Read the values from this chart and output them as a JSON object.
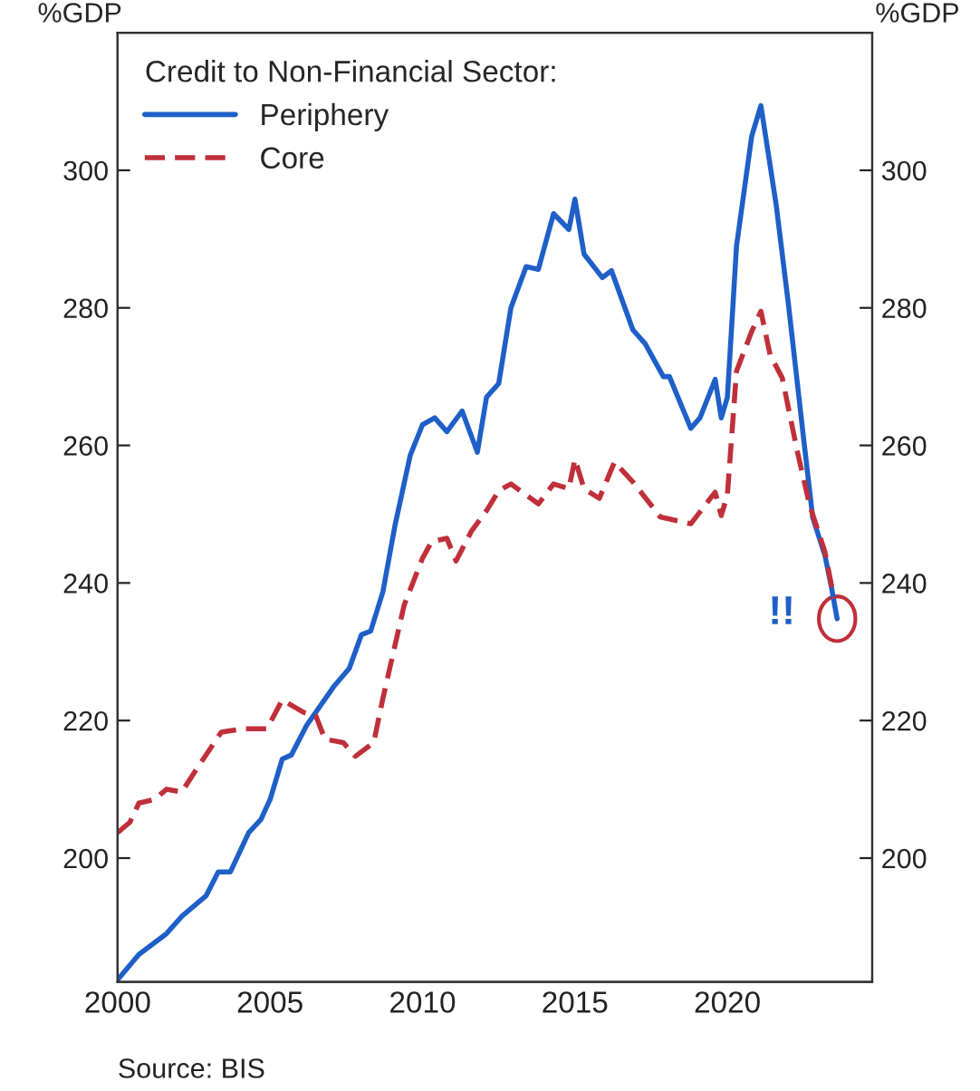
{
  "chart_data": {
    "type": "line",
    "legend_title": "Credit to Non-Financial Sector:",
    "ylabel": "%GDP",
    "y2label": "%GDP",
    "xlim": [
      2000,
      2024.75
    ],
    "xticks": [
      2000,
      2005,
      2010,
      2015,
      2020
    ],
    "ylim": [
      182,
      320
    ],
    "yticks": [
      200,
      220,
      240,
      260,
      280,
      300
    ],
    "y2lim": [
      182,
      320
    ],
    "y2ticks": [
      200,
      220,
      240,
      260,
      280,
      300
    ],
    "legend": "top left",
    "grid": false,
    "series": [
      {
        "name": "Periphery",
        "color": "#1f5fc8",
        "line_style": "solid",
        "x": [
          2000,
          2000.7,
          2001.6,
          2002.1,
          2002.9,
          2003.3,
          2003.7,
          2004.3,
          2004.7,
          2005,
          2005.4,
          2005.7,
          2006.2,
          2007.1,
          2007.6,
          2008,
          2008.3,
          2008.7,
          2009.1,
          2009.6,
          2010,
          2010.4,
          2010.8,
          2011.3,
          2011.8,
          2012.1,
          2012.5,
          2012.9,
          2013.4,
          2013.8,
          2014.3,
          2014.8,
          2015.0,
          2015.3,
          2015.9,
          2016.2,
          2016.9,
          2017.3,
          2017.9,
          2018.1,
          2018.8,
          2019.1,
          2019.6,
          2019.8,
          2020.0,
          2020.3,
          2020.8,
          2021.1,
          2021.6,
          2022,
          2022.5,
          2022.8,
          2023.2,
          2023.4,
          2023.6
        ],
        "values": [
          182.3,
          186,
          189,
          191.5,
          194.5,
          198,
          198,
          203.7,
          205.6,
          208.5,
          214.4,
          215,
          219.3,
          225,
          227.6,
          232.5,
          233,
          238.7,
          248.4,
          258.6,
          263,
          264,
          262,
          265,
          259,
          267,
          269,
          280,
          286,
          285.6,
          293.7,
          291.4,
          295.8,
          287.8,
          284.4,
          285.4,
          276.8,
          274.8,
          270,
          270,
          262.5,
          264,
          269.6,
          264,
          267,
          289,
          305,
          309.4,
          295,
          280.6,
          261,
          249.5,
          244,
          239.7,
          234.8
        ]
      },
      {
        "name": "Core",
        "color": "#c0303a",
        "line_style": "dashed",
        "x": [
          2000,
          2000.4,
          2000.7,
          2001.2,
          2001.6,
          2002.1,
          2002.6,
          2003.4,
          2004.1,
          2004.9,
          2005.4,
          2006.1,
          2006.5,
          2006.8,
          2007.4,
          2007.8,
          2008.4,
          2008.7,
          2009.4,
          2010,
          2010.3,
          2010.8,
          2011.1,
          2011.6,
          2012.1,
          2012.5,
          2012.9,
          2013.8,
          2014.3,
          2014.8,
          2015,
          2015.3,
          2015.8,
          2016.3,
          2016.9,
          2017.8,
          2018.8,
          2019.6,
          2019.8,
          2020,
          2020.3,
          2020.8,
          2021.1,
          2021.4,
          2021.8,
          2022.3,
          2022.7,
          2023.2,
          2023.5
        ],
        "values": [
          203.7,
          205.2,
          208,
          208.5,
          210,
          209.6,
          213,
          218.3,
          218.8,
          218.8,
          223,
          221.2,
          220.7,
          217.3,
          216.8,
          214.8,
          216.8,
          223.2,
          236.8,
          243.6,
          246,
          246.5,
          243.2,
          247.5,
          250.5,
          253.4,
          254.4,
          251.5,
          254.4,
          253.7,
          258,
          253.7,
          252.3,
          257.6,
          254.7,
          249.6,
          248.6,
          253.2,
          249.8,
          252.8,
          270.8,
          276.6,
          279.5,
          273.2,
          269.8,
          259,
          251.3,
          244.5,
          237.7
        ]
      }
    ],
    "annotations": [
      "!!",
      "Source: BIS"
    ]
  }
}
